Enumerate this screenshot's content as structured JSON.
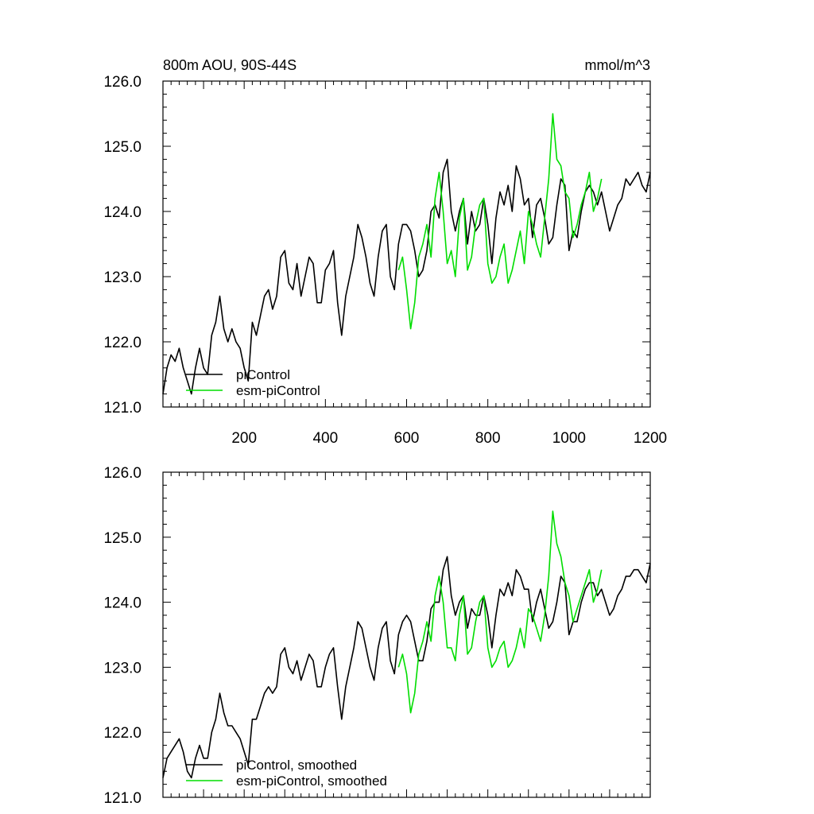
{
  "chart_data": [
    {
      "type": "line",
      "title_left": "800m AOU, 90S-44S",
      "title_right": "mmol/m^3",
      "xlim": [
        0,
        1200
      ],
      "ylim": [
        121.0,
        126.0
      ],
      "x_ticks": [
        200,
        400,
        600,
        800,
        1000,
        1200
      ],
      "x_tick_labels": [
        "200",
        "400",
        "600",
        "800",
        "1000",
        "1200"
      ],
      "y_ticks": [
        121.0,
        122.0,
        123.0,
        124.0,
        125.0,
        126.0
      ],
      "y_tick_labels": [
        "121.0",
        "122.0",
        "123.0",
        "124.0",
        "125.0",
        "126.0"
      ],
      "legend_position": "lower-left",
      "series": [
        {
          "name": "piControl",
          "color": "#000000",
          "x": [
            0,
            10,
            20,
            30,
            40,
            50,
            60,
            70,
            80,
            90,
            100,
            110,
            120,
            130,
            140,
            150,
            160,
            170,
            180,
            190,
            200,
            210,
            220,
            230,
            240,
            250,
            260,
            270,
            280,
            290,
            300,
            310,
            320,
            330,
            340,
            350,
            360,
            370,
            380,
            390,
            400,
            410,
            420,
            430,
            440,
            450,
            460,
            470,
            480,
            490,
            500,
            510,
            520,
            530,
            540,
            550,
            560,
            570,
            580,
            590,
            600,
            610,
            620,
            630,
            640,
            650,
            660,
            670,
            680,
            690,
            700,
            710,
            720,
            730,
            740,
            750,
            760,
            770,
            780,
            790,
            800,
            810,
            820,
            830,
            840,
            850,
            860,
            870,
            880,
            890,
            900,
            910,
            920,
            930,
            940,
            950,
            960,
            970,
            980,
            990,
            1000,
            1010,
            1020,
            1030,
            1040,
            1050,
            1060,
            1070,
            1080,
            1090,
            1100,
            1110,
            1120,
            1130,
            1140,
            1150,
            1160,
            1170,
            1180,
            1190,
            1200
          ],
          "values": [
            121.2,
            121.6,
            121.8,
            121.7,
            121.9,
            121.6,
            121.4,
            121.2,
            121.6,
            121.9,
            121.6,
            121.5,
            122.1,
            122.3,
            122.7,
            122.2,
            122.0,
            122.2,
            122.0,
            121.9,
            121.6,
            121.4,
            122.3,
            122.1,
            122.4,
            122.7,
            122.8,
            122.5,
            122.7,
            123.3,
            123.4,
            122.9,
            122.8,
            123.2,
            122.7,
            123.0,
            123.3,
            123.2,
            122.6,
            122.6,
            123.1,
            123.2,
            123.4,
            122.6,
            122.1,
            122.7,
            123.0,
            123.3,
            123.8,
            123.6,
            123.3,
            122.9,
            122.7,
            123.3,
            123.7,
            123.8,
            123.0,
            122.8,
            123.5,
            123.8,
            123.8,
            123.7,
            123.4,
            123.0,
            123.1,
            123.4,
            124.0,
            124.1,
            123.9,
            124.6,
            124.8,
            124.0,
            123.7,
            124.0,
            124.2,
            123.5,
            124.0,
            123.7,
            123.8,
            124.2,
            123.8,
            123.2,
            123.9,
            124.3,
            124.1,
            124.4,
            124.0,
            124.7,
            124.5,
            124.1,
            124.2,
            123.6,
            124.1,
            124.2,
            123.9,
            123.5,
            123.6,
            124.1,
            124.5,
            124.4,
            123.4,
            123.7,
            123.6,
            124.0,
            124.3,
            124.4,
            124.3,
            124.1,
            124.3,
            124.0,
            123.7,
            123.9,
            124.1,
            124.2,
            124.5,
            124.4,
            124.5,
            124.6,
            124.4,
            124.3,
            124.6
          ]
        },
        {
          "name": "esm-piControl",
          "color": "#00dd00",
          "x": [
            580,
            590,
            600,
            610,
            620,
            630,
            640,
            650,
            660,
            670,
            680,
            690,
            700,
            710,
            720,
            730,
            740,
            750,
            760,
            770,
            780,
            790,
            800,
            810,
            820,
            830,
            840,
            850,
            860,
            870,
            880,
            890,
            900,
            910,
            920,
            930,
            940,
            950,
            960,
            970,
            980,
            990,
            1000,
            1010,
            1020,
            1030,
            1040,
            1050,
            1060,
            1070,
            1080
          ],
          "values": [
            123.1,
            123.3,
            122.8,
            122.2,
            122.6,
            123.3,
            123.5,
            123.8,
            123.3,
            124.2,
            124.6,
            124.0,
            123.2,
            123.4,
            123.0,
            123.9,
            124.2,
            123.1,
            123.3,
            123.8,
            124.1,
            124.2,
            123.2,
            122.9,
            123.0,
            123.3,
            123.5,
            122.9,
            123.1,
            123.4,
            123.7,
            123.2,
            124.0,
            123.8,
            123.5,
            123.3,
            123.9,
            124.5,
            125.5,
            124.8,
            124.7,
            124.3,
            124.2,
            123.6,
            123.8,
            124.1,
            124.3,
            124.6,
            124.0,
            124.2,
            124.5
          ]
        }
      ]
    },
    {
      "type": "line",
      "xlim": [
        0,
        1200
      ],
      "ylim": [
        121.0,
        126.0
      ],
      "y_ticks": [
        121.0,
        122.0,
        123.0,
        124.0,
        125.0,
        126.0
      ],
      "y_tick_labels": [
        "121.0",
        "122.0",
        "123.0",
        "124.0",
        "125.0",
        "126.0"
      ],
      "legend_position": "lower-left",
      "series": [
        {
          "name": "piControl, smoothed",
          "color": "#000000",
          "x": [
            0,
            10,
            20,
            30,
            40,
            50,
            60,
            70,
            80,
            90,
            100,
            110,
            120,
            130,
            140,
            150,
            160,
            170,
            180,
            190,
            200,
            210,
            220,
            230,
            240,
            250,
            260,
            270,
            280,
            290,
            300,
            310,
            320,
            330,
            340,
            350,
            360,
            370,
            380,
            390,
            400,
            410,
            420,
            430,
            440,
            450,
            460,
            470,
            480,
            490,
            500,
            510,
            520,
            530,
            540,
            550,
            560,
            570,
            580,
            590,
            600,
            610,
            620,
            630,
            640,
            650,
            660,
            670,
            680,
            690,
            700,
            710,
            720,
            730,
            740,
            750,
            760,
            770,
            780,
            790,
            800,
            810,
            820,
            830,
            840,
            850,
            860,
            870,
            880,
            890,
            900,
            910,
            920,
            930,
            940,
            950,
            960,
            970,
            980,
            990,
            1000,
            1010,
            1020,
            1030,
            1040,
            1050,
            1060,
            1070,
            1080,
            1090,
            1100,
            1110,
            1120,
            1130,
            1140,
            1150,
            1160,
            1170,
            1180,
            1190,
            1200
          ],
          "values": [
            121.3,
            121.6,
            121.7,
            121.8,
            121.9,
            121.7,
            121.4,
            121.3,
            121.6,
            121.8,
            121.6,
            121.6,
            122.0,
            122.2,
            122.6,
            122.3,
            122.1,
            122.1,
            122.0,
            121.9,
            121.7,
            121.5,
            122.2,
            122.2,
            122.4,
            122.6,
            122.7,
            122.6,
            122.7,
            123.2,
            123.3,
            123.0,
            122.9,
            123.1,
            122.8,
            123.0,
            123.2,
            123.1,
            122.7,
            122.7,
            123.0,
            123.2,
            123.3,
            122.7,
            122.2,
            122.7,
            123.0,
            123.3,
            123.7,
            123.6,
            123.3,
            123.0,
            122.8,
            123.3,
            123.6,
            123.7,
            123.1,
            122.9,
            123.5,
            123.7,
            123.8,
            123.7,
            123.4,
            123.1,
            123.1,
            123.4,
            123.9,
            124.0,
            124.0,
            124.5,
            124.7,
            124.1,
            123.8,
            124.0,
            124.1,
            123.6,
            123.9,
            123.8,
            123.8,
            124.1,
            123.8,
            123.3,
            123.8,
            124.2,
            124.1,
            124.3,
            124.1,
            124.5,
            124.4,
            124.2,
            124.2,
            123.7,
            124.0,
            124.2,
            123.9,
            123.6,
            123.7,
            124.0,
            124.4,
            124.3,
            123.5,
            123.7,
            123.7,
            124.0,
            124.2,
            124.3,
            124.3,
            124.1,
            124.2,
            124.0,
            123.8,
            123.9,
            124.1,
            124.2,
            124.4,
            124.4,
            124.5,
            124.5,
            124.4,
            124.3,
            124.6
          ]
        },
        {
          "name": "esm-piControl, smoothed",
          "color": "#00dd00",
          "x": [
            580,
            590,
            600,
            610,
            620,
            630,
            640,
            650,
            660,
            670,
            680,
            690,
            700,
            710,
            720,
            730,
            740,
            750,
            760,
            770,
            780,
            790,
            800,
            810,
            820,
            830,
            840,
            850,
            860,
            870,
            880,
            890,
            900,
            910,
            920,
            930,
            940,
            950,
            960,
            970,
            980,
            990,
            1000,
            1010,
            1020,
            1030,
            1040,
            1050,
            1060,
            1070,
            1080
          ],
          "values": [
            123.0,
            123.2,
            122.9,
            122.3,
            122.6,
            123.2,
            123.4,
            123.7,
            123.4,
            124.1,
            124.4,
            124.0,
            123.3,
            123.3,
            123.1,
            123.8,
            124.1,
            123.2,
            123.3,
            123.7,
            124.0,
            124.1,
            123.3,
            123.0,
            123.1,
            123.3,
            123.4,
            123.0,
            123.1,
            123.3,
            123.6,
            123.3,
            123.9,
            123.8,
            123.6,
            123.4,
            123.8,
            124.4,
            125.4,
            124.9,
            124.7,
            124.3,
            124.1,
            123.7,
            123.9,
            124.1,
            124.3,
            124.5,
            124.0,
            124.2,
            124.5
          ]
        }
      ]
    }
  ]
}
